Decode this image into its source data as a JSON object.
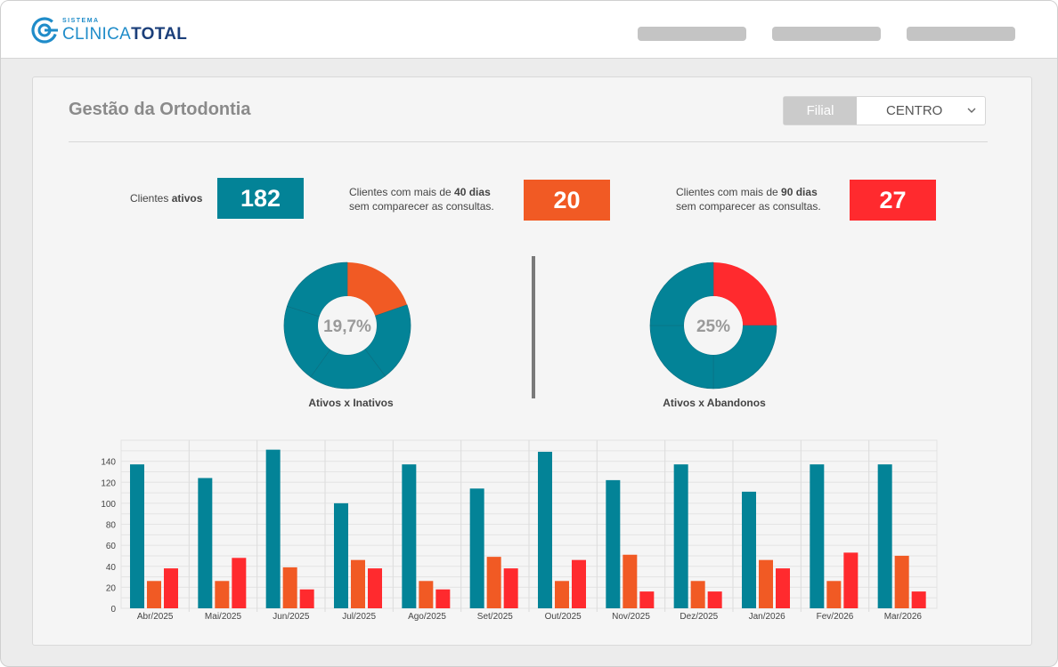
{
  "header": {
    "logo": {
      "small": "SISTEMA",
      "part1": "CLINICA",
      "part2": "TOTAL"
    }
  },
  "page": {
    "title": "Gestão da Ortodontia",
    "filter": {
      "label": "Filial",
      "value": "CENTRO"
    }
  },
  "stats": {
    "active": {
      "label_prefix": "Clientes ",
      "label_bold": "ativos",
      "value": "182",
      "color": "#038397"
    },
    "days40": {
      "line1_prefix": "Clientes com mais de ",
      "line1_bold": "40 dias",
      "line2": "sem comparecer as consultas.",
      "value": "20",
      "color": "#F15A24"
    },
    "days90": {
      "line1_prefix": "Clientes com mais de ",
      "line1_bold": "90 dias",
      "line2": "sem comparecer as consultas.",
      "value": "27",
      "color": "#FF2A2E"
    }
  },
  "donuts": [
    {
      "center": "19,7%",
      "label": "Ativos x Inativos",
      "highlight_fraction": 0.197,
      "highlight_color": "#F15A24",
      "base_color": "#038397",
      "segments": 5
    },
    {
      "center": "25%",
      "label": "Ativos x Abandonos",
      "highlight_fraction": 0.25,
      "highlight_color": "#FF2A2E",
      "base_color": "#038397",
      "segments": 4
    }
  ],
  "chart_data": {
    "type": "bar",
    "categories": [
      "Abr/2025",
      "Mai/2025",
      "Jun/2025",
      "Jul/2025",
      "Ago/2025",
      "Set/2025",
      "Out/2025",
      "Nov/2025",
      "Dez/2025",
      "Jan/2026",
      "Fev/2026",
      "Mar/2026"
    ],
    "series": [
      {
        "color": "#038397",
        "values": [
          137,
          124,
          151,
          100,
          137,
          114,
          149,
          122,
          137,
          111,
          137,
          137
        ]
      },
      {
        "color": "#F15A24",
        "values": [
          26,
          26,
          39,
          46,
          26,
          49,
          26,
          51,
          26,
          46,
          26,
          50
        ]
      },
      {
        "color": "#FF2A2E",
        "values": [
          38,
          48,
          18,
          38,
          18,
          38,
          46,
          16,
          16,
          38,
          53,
          16
        ]
      }
    ],
    "yticks": [
      0,
      20,
      40,
      60,
      80,
      100,
      120,
      140
    ],
    "ylim": [
      0,
      160
    ],
    "grid": true
  }
}
